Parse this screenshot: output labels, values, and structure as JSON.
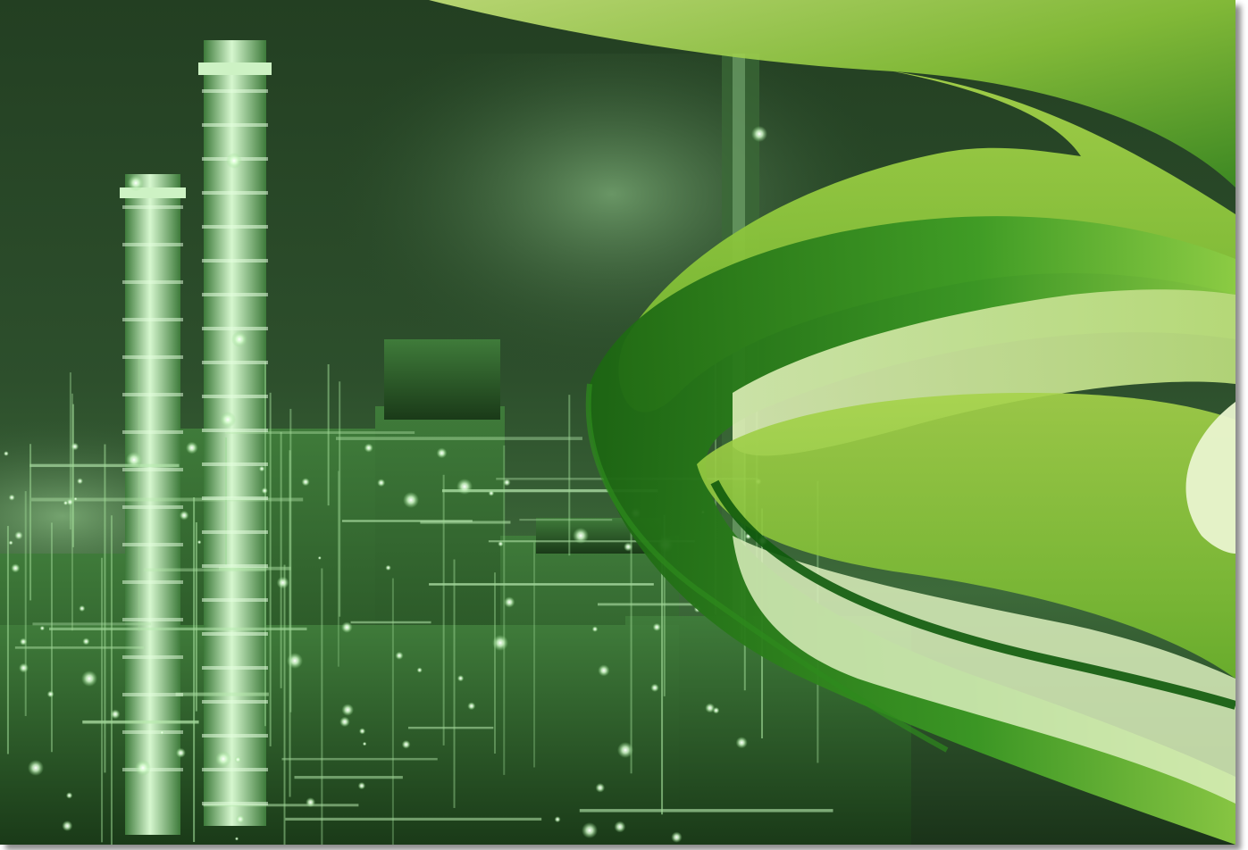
{
  "image": {
    "subject": "refinery-at-night-with-green-waves",
    "palette": {
      "sky_dark": "#1f3a1f",
      "sky_mid": "#4a7a48",
      "structure_glow": "#c8f5c0",
      "light_point": "#eaffe6",
      "wave_light": "#a9d64a",
      "wave_mid": "#5fae2e",
      "wave_dark": "#1e6b14",
      "wave_pale": "#d9ecb4"
    }
  }
}
